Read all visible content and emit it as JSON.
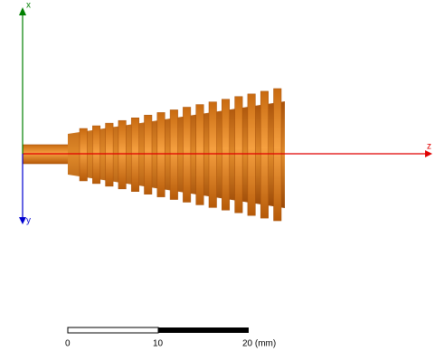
{
  "axes": {
    "x": "x",
    "y": "y",
    "z": "z"
  },
  "scale_bar": {
    "labels": [
      "0",
      "10",
      "20 (mm)"
    ]
  }
}
